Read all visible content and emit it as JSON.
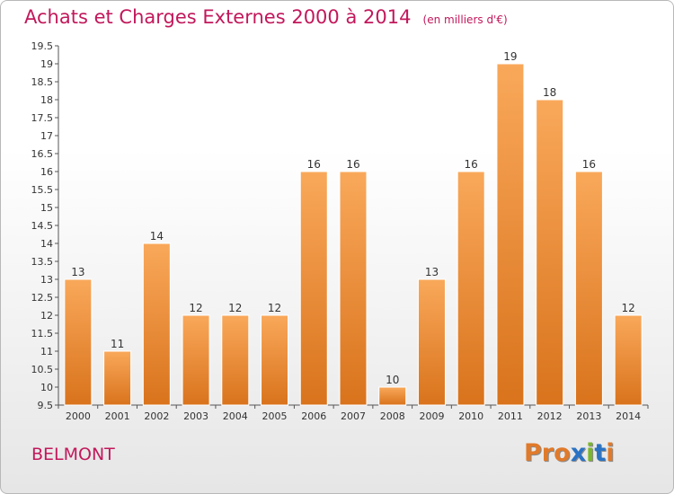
{
  "header": {
    "title": "Achats et Charges Externes 2000 à 2014",
    "unit": "(en milliers d'€)"
  },
  "footer": {
    "city": "BELMONT",
    "logo_text": "Proxiti"
  },
  "colors": {
    "title": "#c2185b",
    "bar_light": "#f9a85a",
    "bar_dark": "#d9731c",
    "logo_letters": [
      "#e07a2a",
      "#e07a2a",
      "#e07a2a",
      "#2a73c4",
      "#7ab62e",
      "#2a73c4",
      "#e07a2a"
    ]
  },
  "chart_data": {
    "type": "bar",
    "title": "Achats et Charges Externes 2000 à 2014",
    "subtitle": "(en milliers d'€)",
    "xlabel": "",
    "ylabel": "",
    "categories": [
      "2000",
      "2001",
      "2002",
      "2003",
      "2004",
      "2005",
      "2006",
      "2007",
      "2008",
      "2009",
      "2010",
      "2011",
      "2012",
      "2013",
      "2014"
    ],
    "values": [
      13,
      11,
      14,
      12,
      12,
      12,
      16,
      16,
      10,
      13,
      16,
      19,
      18,
      16,
      12
    ],
    "data_labels": [
      "13",
      "11",
      "14",
      "12",
      "12",
      "12",
      "16",
      "16",
      "10",
      "13",
      "16",
      "19",
      "18",
      "16",
      "12"
    ],
    "ylim": [
      9.5,
      19.5
    ],
    "y_ticks": [
      "9.5",
      "10",
      "10.5",
      "11",
      "11.5",
      "12",
      "12.5",
      "13",
      "13.5",
      "14",
      "14.5",
      "15",
      "15.5",
      "16",
      "16.5",
      "17",
      "17.5",
      "18",
      "18.5",
      "19",
      "19.5"
    ],
    "grid": false,
    "legend": "none"
  }
}
